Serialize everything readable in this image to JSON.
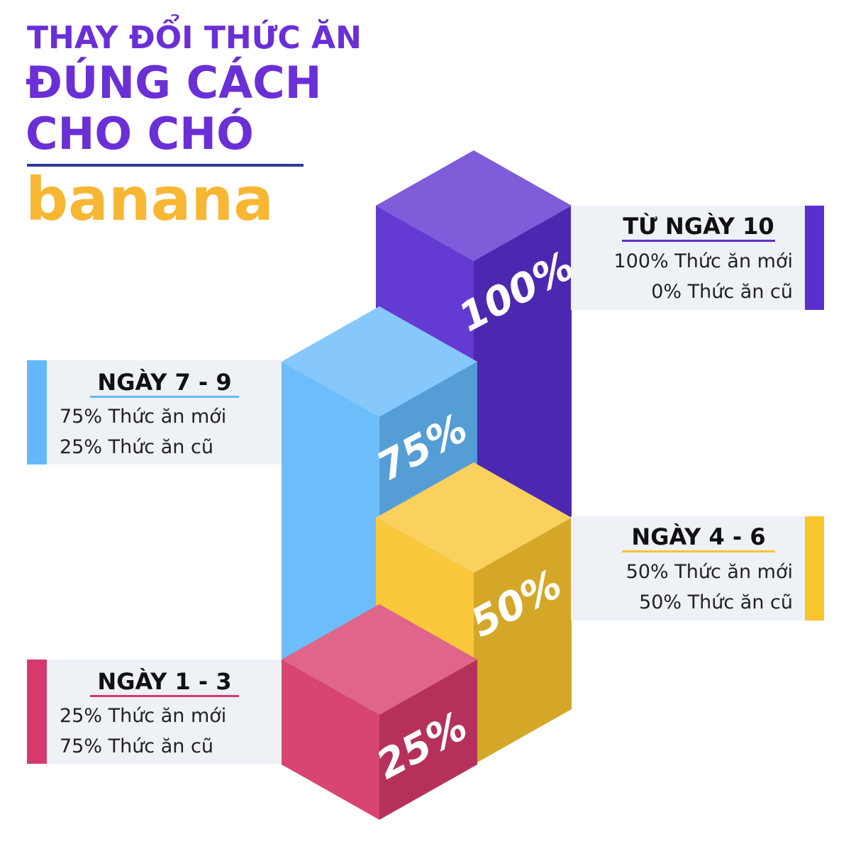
{
  "header": {
    "title": [
      "THAY ĐỔI THỨC ĂN",
      "ĐÚNG CÁCH",
      "CHO CHÓ"
    ],
    "brand": "banana"
  },
  "steps": [
    {
      "label": "NGÀY 1 - 3",
      "percent": "25%",
      "lines": [
        "25% Thức ăn mới",
        "75% Thức ăn cũ"
      ],
      "color": "#d63a6a"
    },
    {
      "label": "NGÀY 4 - 6",
      "percent": "50%",
      "lines": [
        "50% Thức ăn mới",
        "50% Thức ăn cũ"
      ],
      "color": "#f9c52f"
    },
    {
      "label": "NGÀY 7 - 9",
      "percent": "75%",
      "lines": [
        "75% Thức ăn mới",
        "25% Thức ăn cũ"
      ],
      "color": "#64b9fb"
    },
    {
      "label": "TỪ NGÀY 10",
      "percent": "100%",
      "lines": [
        "100% Thức ăn mới",
        "0% Thức ăn cũ"
      ],
      "color": "#5a2fd0"
    }
  ]
}
